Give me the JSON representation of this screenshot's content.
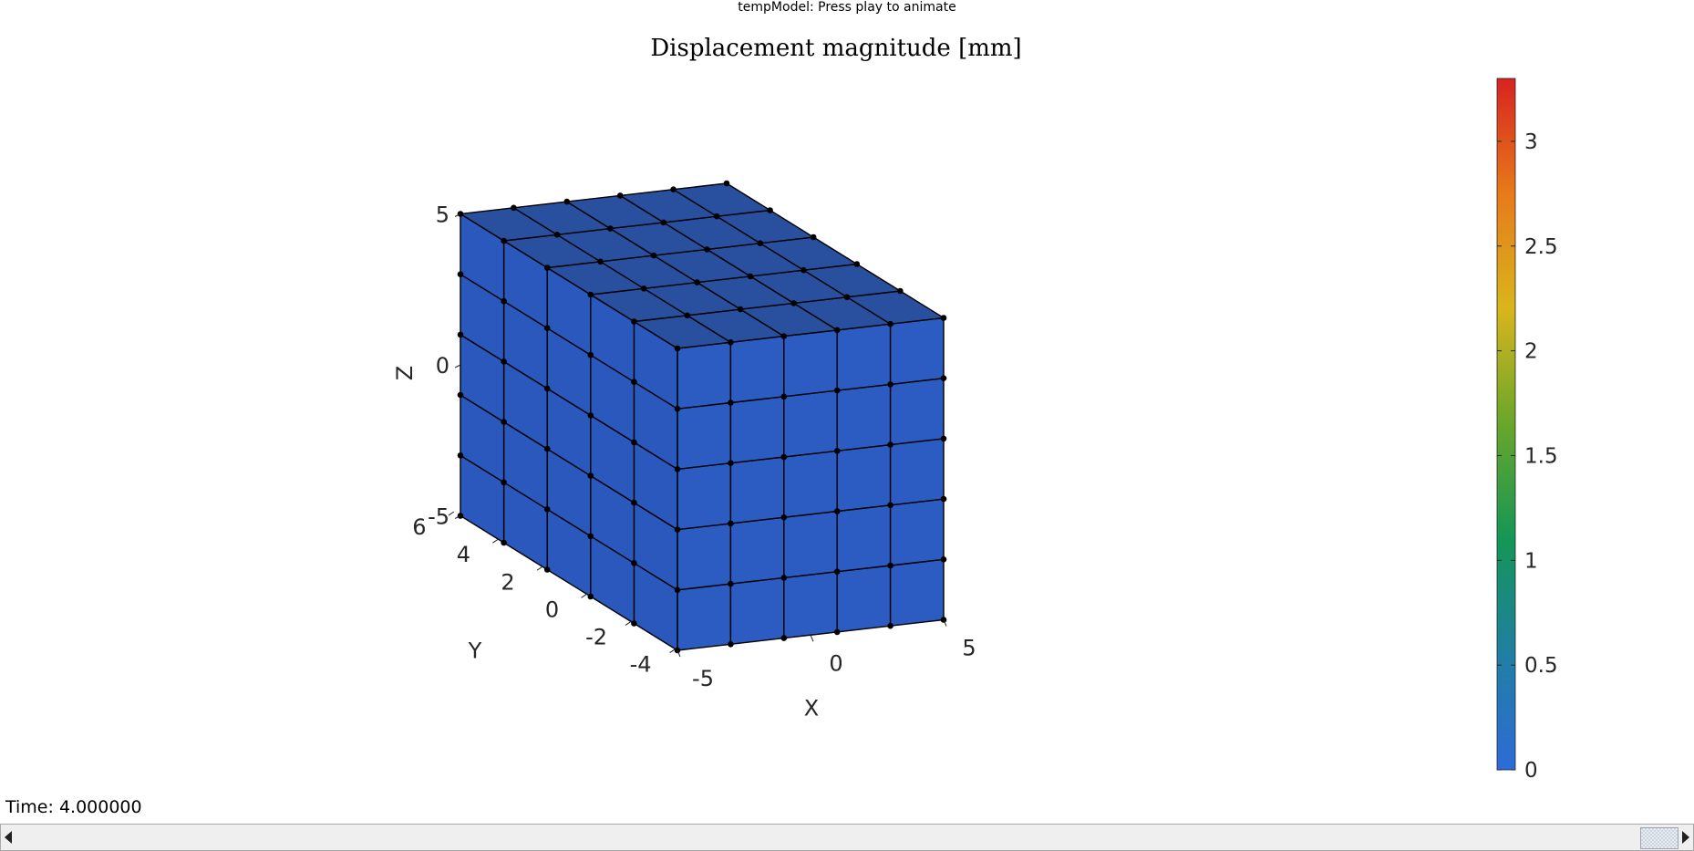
{
  "window": {
    "title": "tempModel: Press play to animate"
  },
  "status": {
    "time_text": "Time: 4.000000"
  },
  "colors": {
    "face": "#2c5cc2",
    "edge": "#000000",
    "background": "#ffffff"
  },
  "icons": {
    "scroll_left": "triangle-left",
    "scroll_right": "triangle-right"
  },
  "scrollbar": {
    "position": 1.0
  },
  "chart_data": {
    "type": "3d-mesh",
    "title": "Displacement magnitude [mm]",
    "xlabel": "X",
    "ylabel": "Y",
    "zlabel": "Z",
    "xticks": [
      "-5",
      "0",
      "5"
    ],
    "yticks": [
      "-4",
      "-2",
      "0",
      "2",
      "4",
      "6"
    ],
    "zticks": [
      "-5",
      "0",
      "5"
    ],
    "xlim": [
      -5,
      5
    ],
    "ylim": [
      -5,
      5
    ],
    "zlim": [
      -5,
      5
    ],
    "mesh": {
      "divisions": 5,
      "displacement_mm": 0
    },
    "grid": false,
    "colorbar": {
      "min": 0,
      "max": 3.3,
      "ticks": [
        "0",
        "0.5",
        "1",
        "1.5",
        "2",
        "2.5",
        "3"
      ],
      "tick_values": [
        0,
        0.5,
        1,
        1.5,
        2,
        2.5,
        3
      ],
      "colormap": [
        "#2d6bd8",
        "#207fa3",
        "#149656",
        "#69a62a",
        "#d9b51d",
        "#e77a1a",
        "#d72320"
      ],
      "location": "right"
    }
  }
}
